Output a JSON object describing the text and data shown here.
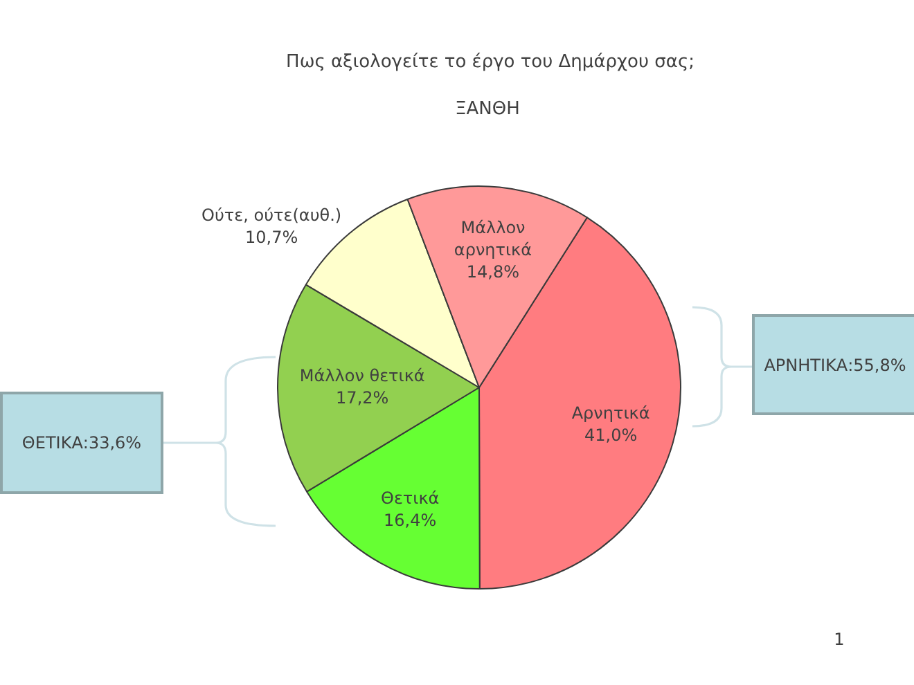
{
  "chart_data": {
    "type": "pie",
    "title": "Πως αξιολογείτε το έργο του Δημάρχου σας;",
    "subtitle": "ΞΑΝΘΗ",
    "categories": [
      "Αρνητικά",
      "Θετικά",
      "Μάλλον θετικά",
      "Ούτε, ούτε(αυθ.)",
      "Μάλλον αρνητικά"
    ],
    "values": [
      41.0,
      16.4,
      17.2,
      10.7,
      14.8
    ],
    "colors": [
      "#ff7c80",
      "#66ff33",
      "#92d050",
      "#ffffcc",
      "#ff9999"
    ],
    "value_labels": [
      "41,0%",
      "16,4%",
      "17,2%",
      "10,7%",
      "14,8%"
    ],
    "annotations": [
      "ΘΕΤΙΚΑ:33,6%",
      "ΑΡΝΗΤΙΚΑ:55,8%",
      "1"
    ]
  }
}
